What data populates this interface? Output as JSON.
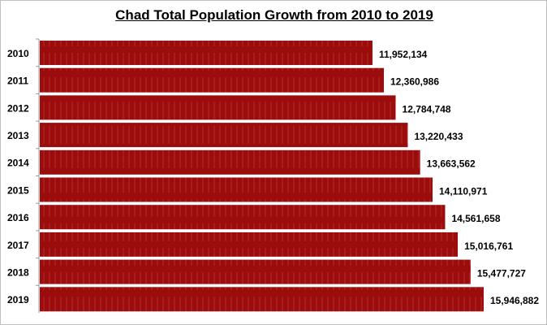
{
  "chart_data": {
    "type": "bar",
    "orientation": "horizontal",
    "title": "Chad Total Population Growth from 2010 to 2019",
    "categories": [
      "2010",
      "2011",
      "2012",
      "2013",
      "2014",
      "2015",
      "2016",
      "2017",
      "2018",
      "2019"
    ],
    "values": [
      11952134,
      12360986,
      12784748,
      13220433,
      13663562,
      14110971,
      14561658,
      15016761,
      15477727,
      15946882
    ],
    "data_labels": [
      "11,952,134",
      "12,360,986",
      "12,784,748",
      "13,220,433",
      "13,663,562",
      "14,110,971",
      "14,561,658",
      "15,016,761",
      "15,477,727",
      "15,946,882"
    ],
    "xlim": [
      0,
      19500000
    ],
    "grid": false,
    "legend": "none",
    "bar_color": "#9b0c0c"
  }
}
